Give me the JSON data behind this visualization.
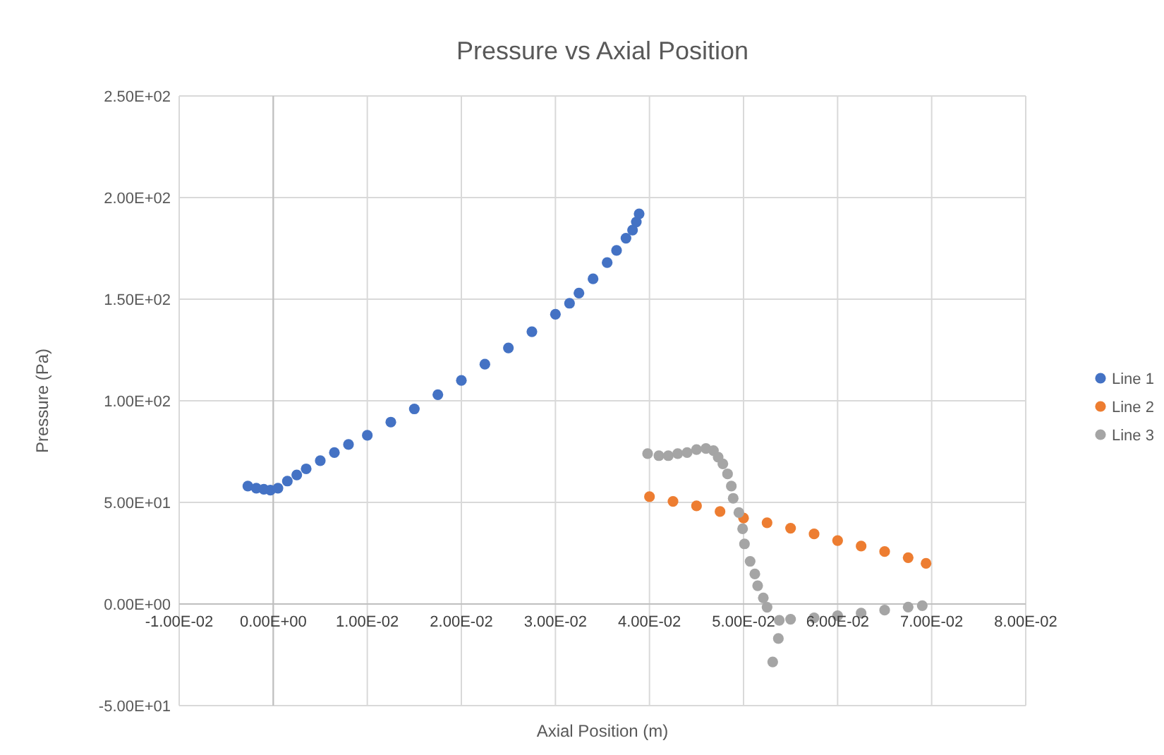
{
  "chart_data": {
    "type": "scatter",
    "title": "Pressure vs Axial Position",
    "xlabel": "Axial Position (m)",
    "ylabel": "Pressure (Pa)",
    "xlim": [
      -0.01,
      0.08
    ],
    "ylim": [
      -50,
      250
    ],
    "xticks": [
      {
        "value": -0.01,
        "label": "-1.00E-02"
      },
      {
        "value": 0,
        "label": "0.00E+00"
      },
      {
        "value": 0.01,
        "label": "1.00E-02"
      },
      {
        "value": 0.02,
        "label": "2.00E-02"
      },
      {
        "value": 0.03,
        "label": "3.00E-02"
      },
      {
        "value": 0.04,
        "label": "4.00E-02"
      },
      {
        "value": 0.05,
        "label": "5.00E-02"
      },
      {
        "value": 0.06,
        "label": "6.00E-02"
      },
      {
        "value": 0.07,
        "label": "7.00E-02"
      },
      {
        "value": 0.08,
        "label": "8.00E-02"
      }
    ],
    "yticks": [
      {
        "value": -50,
        "label": "-5.00E+01"
      },
      {
        "value": 0,
        "label": "0.00E+00"
      },
      {
        "value": 50,
        "label": "5.00E+01"
      },
      {
        "value": 100,
        "label": "1.00E+02"
      },
      {
        "value": 150,
        "label": "1.50E+02"
      },
      {
        "value": 200,
        "label": "2.00E+02"
      },
      {
        "value": 250,
        "label": "2.50E+02"
      }
    ],
    "grid": true,
    "legend": "right",
    "marker": "circle",
    "series": [
      {
        "name": "Line 1",
        "color": "#4472c4",
        "x": [
          -0.0027,
          -0.0018,
          -0.001,
          -0.0003,
          0.0005,
          0.0015,
          0.0025,
          0.0035,
          0.005,
          0.0065,
          0.008,
          0.01,
          0.0125,
          0.015,
          0.0175,
          0.02,
          0.0225,
          0.025,
          0.0275,
          0.03,
          0.0315,
          0.0325,
          0.034,
          0.0355,
          0.0365,
          0.0375,
          0.0382,
          0.0386,
          0.0389
        ],
        "values": [
          58,
          57,
          56.5,
          56,
          57,
          60.5,
          63.5,
          66.5,
          70.5,
          74.5,
          78.5,
          83,
          89.5,
          96,
          103,
          110,
          118,
          126,
          134,
          142.6,
          148,
          153,
          160,
          168,
          174,
          180,
          184,
          188,
          192
        ]
      },
      {
        "name": "Line 2",
        "color": "#ed7d31",
        "x": [
          0.04,
          0.0425,
          0.045,
          0.0475,
          0.05,
          0.0525,
          0.055,
          0.0575,
          0.06,
          0.0625,
          0.065,
          0.0675,
          0.0694
        ],
        "values": [
          52.8,
          50.5,
          48.3,
          45.5,
          42.3,
          40,
          37.3,
          34.5,
          31.2,
          28.5,
          25.8,
          22.8,
          20
        ]
      },
      {
        "name": "Line 3",
        "color": "#a5a5a5",
        "x": [
          0.0398,
          0.041,
          0.042,
          0.043,
          0.044,
          0.045,
          0.046,
          0.0468,
          0.0473,
          0.0478,
          0.0483,
          0.0487,
          0.0489,
          0.0495,
          0.0499,
          0.0501,
          0.0507,
          0.0512,
          0.0515,
          0.0521,
          0.0525,
          0.0531,
          0.0537,
          0.0538,
          0.055,
          0.0575,
          0.06,
          0.0625,
          0.065,
          0.0675,
          0.069
        ],
        "values": [
          74,
          73,
          73,
          74,
          74.5,
          76,
          76.5,
          75.5,
          72.3,
          69,
          64,
          58,
          52,
          45,
          37,
          29.6,
          21,
          14.8,
          9,
          3,
          -1.6,
          -28.5,
          -17,
          -8,
          -7.5,
          -6.8,
          -5.8,
          -4.5,
          -3,
          -1.5,
          -0.8
        ]
      }
    ]
  }
}
